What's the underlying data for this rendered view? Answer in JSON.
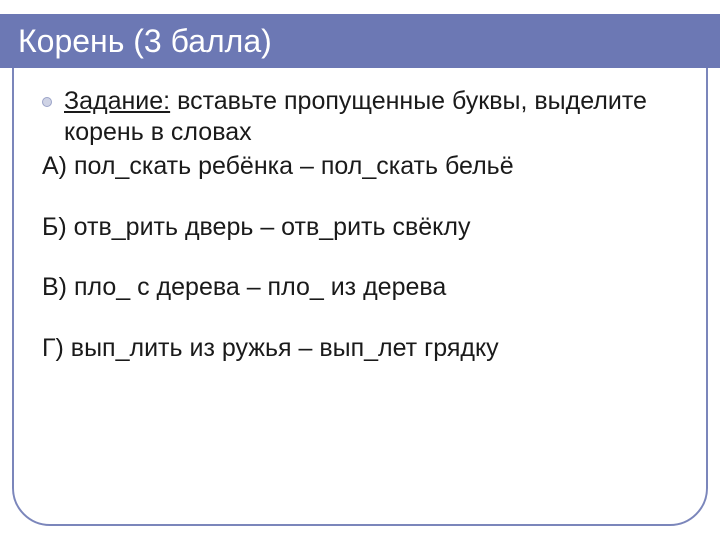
{
  "slide": {
    "title": "Корень (3 балла)",
    "title_bg": "#6c78b4",
    "title_color": "#ffffff",
    "frame_color": "#7b86bb",
    "bullet_fill": "#cfd3e5",
    "bullet_border": "#9ba3c8",
    "text_color": "#1a1a1a",
    "title_fontsize": 32,
    "body_fontsize": 25
  },
  "task": {
    "label": "Задание:",
    "instruction": " вставьте пропущенные буквы, выделите корень в словах"
  },
  "items": [
    {
      "text": "А) пол_скать ребёнка – пол_скать бельё"
    },
    {
      "text": "Б) отв_рить дверь – отв_рить свёклу"
    },
    {
      "text": "В) пло_ с дерева – пло_ из дерева"
    },
    {
      "text": "Г) вып_лить из ружья – вып_лет  грядку"
    }
  ]
}
